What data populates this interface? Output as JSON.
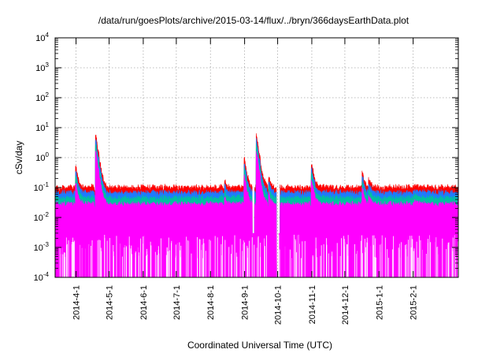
{
  "chart_data": {
    "type": "area",
    "title": "/data/run/goesPlots/archive/2015-03-14/flux/../bryn/366daysEarthData.plot",
    "xlabel": "Coordinated Universal Time (UTC)",
    "ylabel": "cSv/day",
    "yscale": "log",
    "ylim": [
      0.0001,
      10000
    ],
    "y_ticks": [
      {
        "value": 0.0001,
        "base": "10",
        "exp": "-4"
      },
      {
        "value": 0.001,
        "base": "10",
        "exp": "-3"
      },
      {
        "value": 0.01,
        "base": "10",
        "exp": "-2"
      },
      {
        "value": 0.1,
        "base": "10",
        "exp": "-1"
      },
      {
        "value": 1,
        "base": "10",
        "exp": "0"
      },
      {
        "value": 10,
        "base": "10",
        "exp": "1"
      },
      {
        "value": 100,
        "base": "10",
        "exp": "2"
      },
      {
        "value": 1000,
        "base": "10",
        "exp": "3"
      },
      {
        "value": 10000,
        "base": "10",
        "exp": "4"
      }
    ],
    "xlim": [
      "2014-03-13",
      "2015-03-14"
    ],
    "x_ticks": [
      "2014-4-1",
      "2014-5-1",
      "2014-6-1",
      "2014-7-1",
      "2014-8-1",
      "2014-9-1",
      "2014-10-1",
      "2014-11-1",
      "2014-12-1",
      "2015-1-1",
      "2015-2-1"
    ],
    "x_tick_dates": [
      "2014-04-01",
      "2014-05-01",
      "2014-06-01",
      "2014-07-01",
      "2014-08-01",
      "2014-09-01",
      "2014-10-01",
      "2014-11-01",
      "2014-12-01",
      "2015-01-01",
      "2015-02-01"
    ],
    "grid": true,
    "series": [
      {
        "color": "#ff0000",
        "baseline": 0.09,
        "envelope": "max"
      },
      {
        "color": "#1e7bff",
        "baseline": 0.06,
        "envelope": "upper"
      },
      {
        "color": "#00c0a0",
        "baseline": 0.04,
        "envelope": "mid"
      },
      {
        "color": "#ff00ff",
        "baseline": 0.025,
        "envelope": "fill",
        "floor": 0.003
      }
    ],
    "events": [
      {
        "date": "2014-04-01",
        "peak": 0.4
      },
      {
        "date": "2014-04-19",
        "peak": 6
      },
      {
        "date": "2014-08-14",
        "peak": 0.15
      },
      {
        "date": "2014-09-01",
        "peak": 0.8
      },
      {
        "date": "2014-09-12",
        "peak": 5
      },
      {
        "date": "2014-09-23",
        "peak": 0.2
      },
      {
        "date": "2014-11-01",
        "peak": 0.6
      },
      {
        "date": "2014-12-17",
        "peak": 0.3
      },
      {
        "date": "2014-12-23",
        "peak": 0.2
      },
      {
        "date": "2015-02-02",
        "peak": 0.12
      }
    ]
  }
}
